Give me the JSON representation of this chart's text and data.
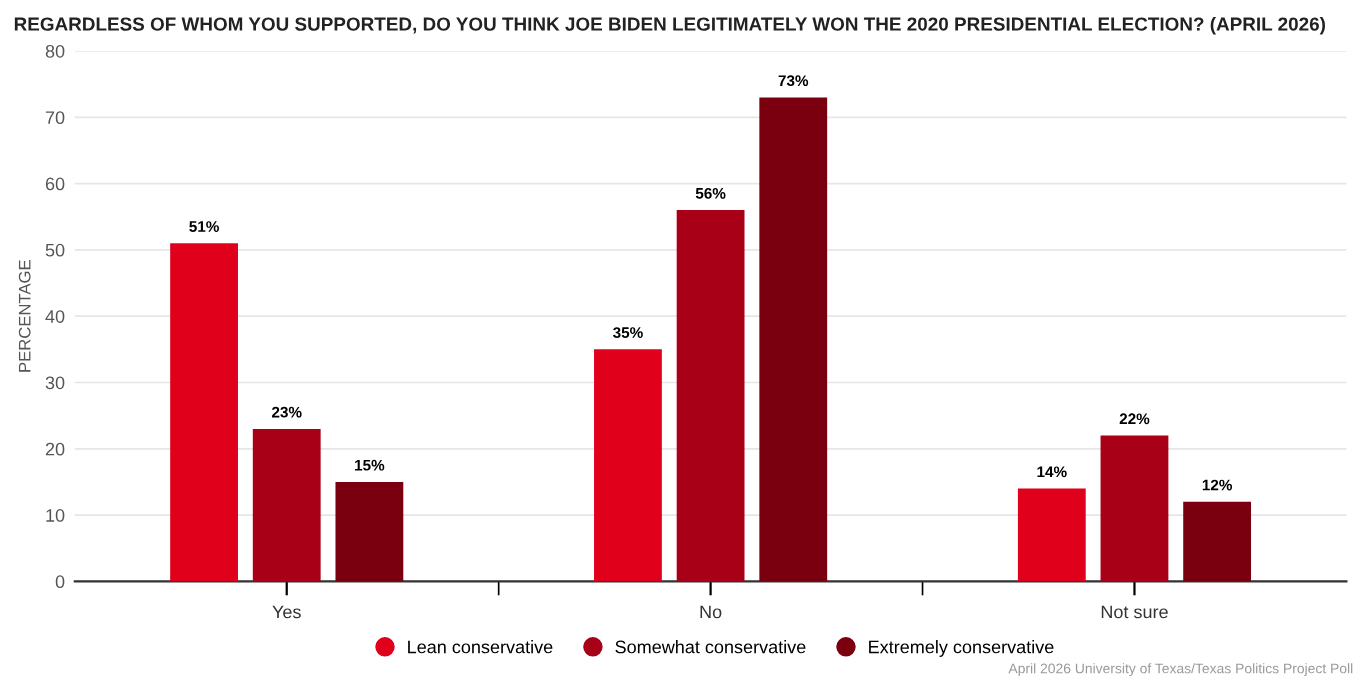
{
  "chart_data": {
    "type": "bar",
    "title": "REGARDLESS OF WHOM YOU SUPPORTED, DO YOU THINK JOE BIDEN LEGITIMATELY WON THE 2020 PRESIDENTIAL ELECTION? (APRIL 2026)",
    "ylabel": "PERCENTAGE",
    "categories": [
      "Yes",
      "No",
      "Not sure"
    ],
    "series": [
      {
        "name": "Lean conservative",
        "color": "#e0001b",
        "values": [
          51,
          35,
          14
        ],
        "value_labels": [
          "51%",
          "35%",
          "14%"
        ]
      },
      {
        "name": "Somewhat conservative",
        "color": "#a80016",
        "values": [
          23,
          56,
          22
        ],
        "value_labels": [
          "23%",
          "56%",
          "22%"
        ]
      },
      {
        "name": "Extremely conservative",
        "color": "#7a0010",
        "values": [
          15,
          73,
          12
        ],
        "value_labels": [
          "15%",
          "73%",
          "12%"
        ]
      }
    ],
    "ylim": [
      0,
      80
    ],
    "yticks": [
      0,
      10,
      20,
      30,
      40,
      50,
      60,
      70,
      80
    ],
    "grid": "y",
    "legend": "bottom",
    "annotations": [
      "April 2026 University of Texas/Texas Politics Project Poll"
    ]
  }
}
